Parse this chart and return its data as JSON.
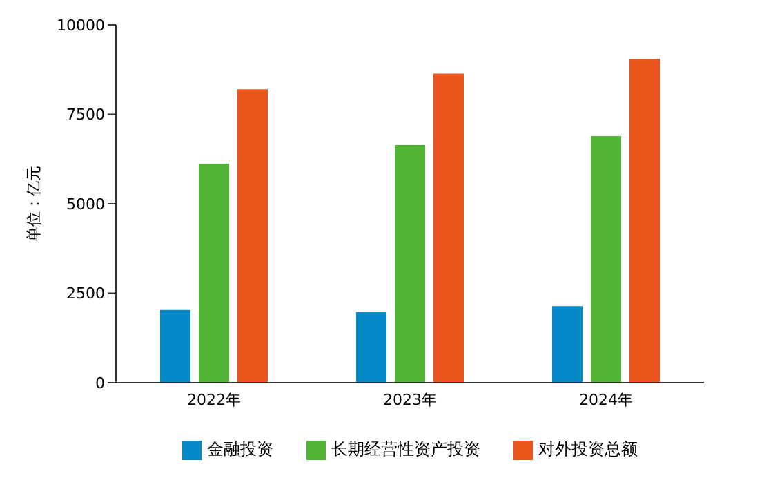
{
  "chart_data": {
    "type": "bar",
    "ylabel": "单位：亿元",
    "categories": [
      "2022年",
      "2023年",
      "2024年"
    ],
    "series": [
      {
        "name": "金融投资",
        "color": "#0588c8",
        "values": [
          2030,
          1970,
          2140
        ]
      },
      {
        "name": "长期经营性资产投资",
        "color": "#52b434",
        "values": [
          6120,
          6640,
          6890
        ]
      },
      {
        "name": "对外投资总额",
        "color": "#ea561c",
        "values": [
          8200,
          8640,
          9050
        ]
      }
    ],
    "ylim": [
      0,
      10000
    ],
    "yticks": [
      0,
      2500,
      5000,
      7500,
      10000
    ],
    "grid": false,
    "legend": "bottom"
  }
}
